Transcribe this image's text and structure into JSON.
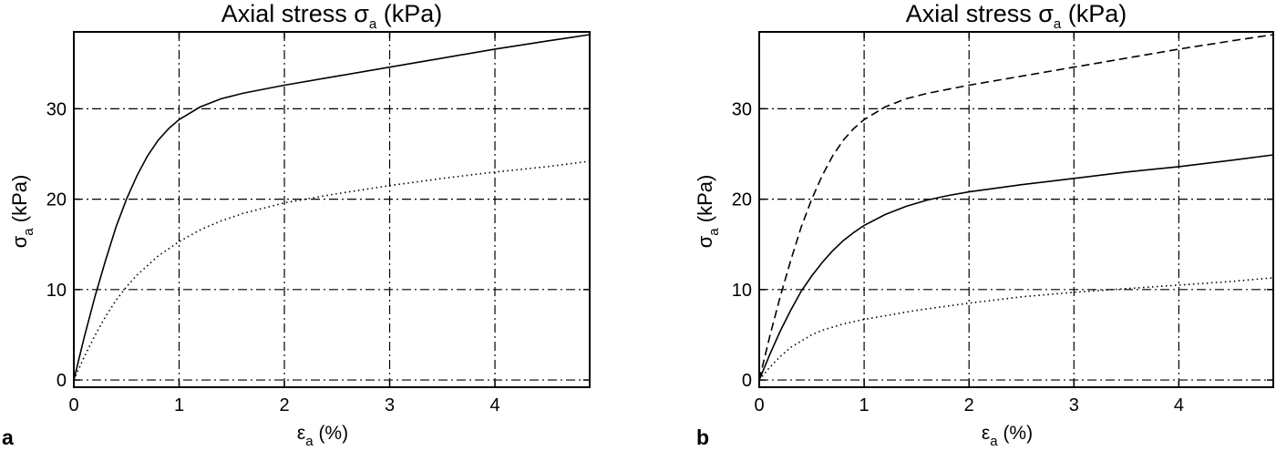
{
  "chart_data": [
    {
      "type": "line",
      "panel_label": "a",
      "title": "Axial stress σa (kPa)",
      "title_main": "Axial stress σ",
      "title_sub": "a",
      "title_tail": " (kPa)",
      "xlabel_main": "ε",
      "xlabel_sub": "a",
      "xlabel_tail": " (%)",
      "ylabel_main": "σ",
      "ylabel_sub": "a",
      "ylabel_tail": " (kPa)",
      "xlim": [
        0,
        4.9
      ],
      "ylim": [
        -0.8,
        38.5
      ],
      "xticks": [
        0,
        1,
        2,
        3,
        4
      ],
      "yticks": [
        0,
        10,
        20,
        30
      ],
      "xtick_labels": [
        "0",
        "1",
        "2",
        "3",
        "4"
      ],
      "ytick_labels": [
        "0",
        "10",
        "20",
        "30"
      ],
      "grid": true,
      "series": [
        {
          "style": "solid",
          "x": [
            0,
            0.1,
            0.2,
            0.3,
            0.4,
            0.5,
            0.6,
            0.7,
            0.8,
            0.9,
            1.0,
            1.2,
            1.4,
            1.6,
            2.0,
            2.5,
            3.0,
            3.5,
            4.0,
            4.5,
            4.9
          ],
          "y": [
            0,
            4.8,
            9.2,
            13.2,
            16.9,
            20.0,
            22.6,
            24.8,
            26.5,
            27.8,
            28.8,
            30.2,
            31.1,
            31.7,
            32.6,
            33.6,
            34.6,
            35.6,
            36.6,
            37.5,
            38.2
          ]
        },
        {
          "style": "dotted",
          "x": [
            0,
            0.1,
            0.2,
            0.3,
            0.4,
            0.5,
            0.6,
            0.8,
            1.0,
            1.2,
            1.4,
            1.6,
            2.0,
            2.5,
            3.0,
            3.5,
            4.0,
            4.5,
            4.9
          ],
          "y": [
            0,
            2.6,
            4.9,
            7.0,
            8.8,
            10.3,
            11.6,
            13.7,
            15.3,
            16.6,
            17.6,
            18.4,
            19.6,
            20.6,
            21.5,
            22.3,
            23.0,
            23.6,
            24.2
          ]
        }
      ]
    },
    {
      "type": "line",
      "panel_label": "b",
      "title": "Axial stress σa (kPa)",
      "title_main": "Axial stress σ",
      "title_sub": "a",
      "title_tail": " (kPa)",
      "xlabel_main": "ε",
      "xlabel_sub": "a",
      "xlabel_tail": " (%)",
      "ylabel_main": "σ",
      "ylabel_sub": "a",
      "ylabel_tail": " (kPa)",
      "xlim": [
        0,
        4.9
      ],
      "ylim": [
        -0.8,
        38.5
      ],
      "xticks": [
        0,
        1,
        2,
        3,
        4
      ],
      "yticks": [
        0,
        10,
        20,
        30
      ],
      "xtick_labels": [
        "0",
        "1",
        "2",
        "3",
        "4"
      ],
      "ytick_labels": [
        "0",
        "10",
        "20",
        "30"
      ],
      "grid": true,
      "series": [
        {
          "style": "dashed",
          "x": [
            0,
            0.1,
            0.2,
            0.3,
            0.4,
            0.5,
            0.6,
            0.7,
            0.8,
            0.9,
            1.0,
            1.2,
            1.4,
            1.6,
            2.0,
            2.5,
            3.0,
            3.5,
            4.0,
            4.5,
            4.9
          ],
          "y": [
            0,
            4.8,
            9.2,
            13.2,
            16.9,
            20.0,
            22.6,
            24.8,
            26.5,
            27.8,
            28.8,
            30.2,
            31.1,
            31.7,
            32.6,
            33.6,
            34.6,
            35.6,
            36.6,
            37.5,
            38.2
          ]
        },
        {
          "style": "solid",
          "x": [
            0,
            0.1,
            0.2,
            0.3,
            0.4,
            0.5,
            0.6,
            0.7,
            0.8,
            0.9,
            1.0,
            1.2,
            1.4,
            1.6,
            1.8,
            2.0,
            2.5,
            3.0,
            3.5,
            4.0,
            4.5,
            4.9
          ],
          "y": [
            0,
            2.8,
            5.4,
            7.7,
            9.8,
            11.5,
            13.0,
            14.3,
            15.4,
            16.3,
            17.1,
            18.3,
            19.2,
            19.9,
            20.4,
            20.8,
            21.6,
            22.3,
            23.0,
            23.6,
            24.3,
            24.9
          ]
        },
        {
          "style": "dotted",
          "x": [
            0,
            0.1,
            0.2,
            0.3,
            0.4,
            0.5,
            0.6,
            0.8,
            1.0,
            1.5,
            2.0,
            2.5,
            3.0,
            3.5,
            4.0,
            4.5,
            4.9
          ],
          "y": [
            0,
            1.4,
            2.6,
            3.6,
            4.3,
            5.0,
            5.5,
            6.2,
            6.7,
            7.7,
            8.5,
            9.2,
            9.7,
            10.1,
            10.5,
            10.9,
            11.3
          ]
        }
      ]
    }
  ]
}
